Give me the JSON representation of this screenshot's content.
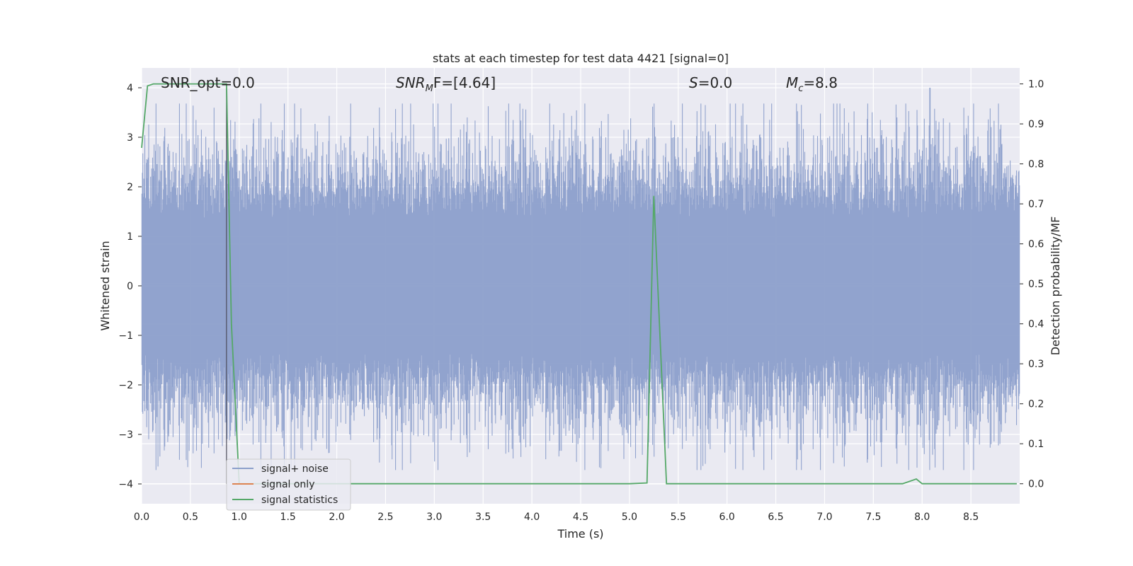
{
  "chart_data": {
    "type": "line",
    "title": "stats at each timestep for test data 4421 [signal=0]",
    "xlabel": "Time (s)",
    "ylabel_left": "Whitened strain",
    "ylabel_right": "Detection probability/MF",
    "xlim": [
      0.0,
      9.0
    ],
    "ylim_left": [
      -4.4,
      4.4
    ],
    "ylim_right": [
      -0.05,
      1.04
    ],
    "x_ticks": [
      "0.0",
      "0.5",
      "1.0",
      "1.5",
      "2.0",
      "2.5",
      "3.0",
      "3.5",
      "4.0",
      "4.5",
      "5.0",
      "5.5",
      "6.0",
      "6.5",
      "7.0",
      "7.5",
      "8.0",
      "8.5"
    ],
    "x_tick_values": [
      0.0,
      0.5,
      1.0,
      1.5,
      2.0,
      2.5,
      3.0,
      3.5,
      4.0,
      4.5,
      5.0,
      5.5,
      6.0,
      6.5,
      7.0,
      7.5,
      8.0,
      8.5
    ],
    "y_ticks_left": [
      "4",
      "3",
      "2",
      "1",
      "0",
      "−1",
      "−2",
      "−3",
      "−4"
    ],
    "y_tick_values_left": [
      4,
      3,
      2,
      1,
      0,
      -1,
      -2,
      -3,
      -4
    ],
    "y_ticks_right": [
      "1.0",
      "0.9",
      "0.8",
      "0.7",
      "0.6",
      "0.5",
      "0.4",
      "0.3",
      "0.2",
      "0.1",
      "0.0"
    ],
    "y_tick_values_right": [
      1.0,
      0.9,
      0.8,
      0.7,
      0.6,
      0.5,
      0.4,
      0.3,
      0.2,
      0.1,
      0.0
    ],
    "grid": true,
    "legend_position": "lower-left",
    "annotations": {
      "snr_opt": "SNR_opt=0.0",
      "snr_mf_main": "SNR",
      "snr_mf_sub": "M",
      "snr_mf_rest": "F=[4.64]",
      "s_main": "S",
      "s_rest": "=0.0",
      "mc_main": "M",
      "mc_sub": "c",
      "mc_rest": "=8.8"
    },
    "series": [
      {
        "name": "signal+ noise",
        "axis": "left",
        "color": "#8c9fcb",
        "kind": "noise",
        "samples": 1800,
        "typical_amplitude": 1.6,
        "peak_amplitude": 4.0,
        "peak_time": 8.08,
        "vertical_marker_time": 0.87
      },
      {
        "name": "signal only",
        "axis": "left",
        "color": "#dd8452",
        "x": [],
        "y": []
      },
      {
        "name": "signal statistics",
        "axis": "right",
        "color": "#55a868",
        "x": [
          0.0,
          0.06,
          0.12,
          0.2,
          0.4,
          0.6,
          0.8,
          0.87,
          0.92,
          1.0,
          1.5,
          2.0,
          3.0,
          4.0,
          5.0,
          5.18,
          5.25,
          5.32,
          5.38,
          5.5,
          6.0,
          7.0,
          7.8,
          7.94,
          8.0,
          8.5,
          8.97
        ],
        "y": [
          0.84,
          0.995,
          1.0,
          1.0,
          1.0,
          1.0,
          1.0,
          1.0,
          0.4,
          0.0,
          0.0,
          0.0,
          0.0,
          0.0,
          0.0,
          0.002,
          0.72,
          0.33,
          0.0,
          0.0,
          0.0,
          0.0,
          0.0,
          0.012,
          0.0,
          0.0,
          0.0
        ]
      }
    ]
  }
}
